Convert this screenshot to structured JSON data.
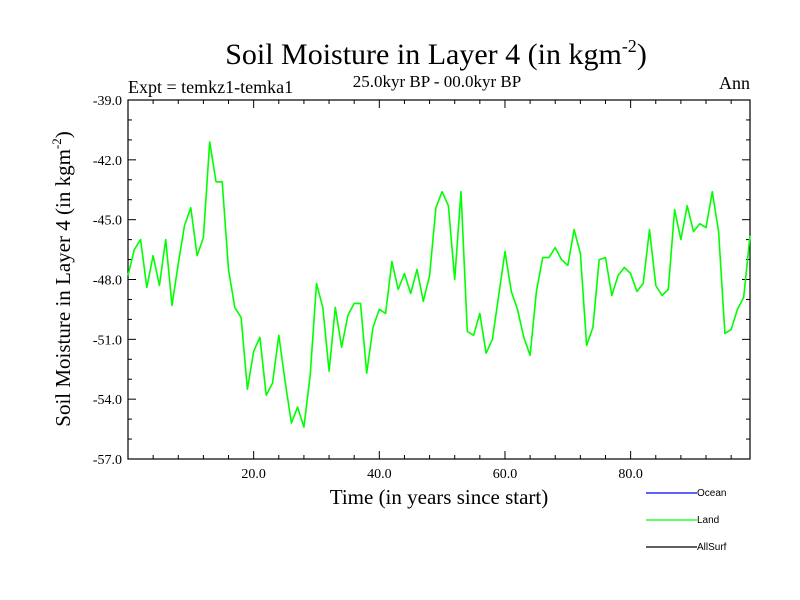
{
  "chart_data": {
    "type": "line",
    "title": "Soil Moisture in Layer 4 (in kgm",
    "title_exponent": "-2",
    "title_close": ")",
    "subtitle_left": "Expt = temkz1-temka1",
    "subtitle_center": "25.0kyr BP - 00.0kyr BP",
    "subtitle_right": "Ann",
    "xlabel": "Time (in years since start)",
    "ylabel": "Soil Moisture in Layer 4 (in kgm",
    "ylabel_exponent": "-2",
    "ylabel_close": ")",
    "xlim": [
      0,
      99
    ],
    "ylim": [
      -57,
      -39
    ],
    "xticks": [
      20,
      40,
      60,
      80
    ],
    "xtick_labels": [
      "20.0",
      "40.0",
      "60.0",
      "80.0"
    ],
    "yticks": [
      -39,
      -42,
      -45,
      -48,
      -51,
      -54,
      -57
    ],
    "ytick_labels": [
      "-39.0",
      "-42.0",
      "-45.0",
      "-48.0",
      "-51.0",
      "-54.0",
      "-57.0"
    ],
    "legend": [
      {
        "name": "Ocean",
        "color": "#0000ff"
      },
      {
        "name": "Land",
        "color": "#00ff00"
      },
      {
        "name": "AllSurf",
        "color": "#000000"
      }
    ],
    "legend_position": "bottom-right",
    "series": [
      {
        "name": "Land",
        "color": "#00ff00",
        "x": [
          0,
          1,
          2,
          3,
          4,
          5,
          6,
          7,
          8,
          9,
          10,
          11,
          12,
          13,
          14,
          15,
          16,
          17,
          18,
          19,
          20,
          21,
          22,
          23,
          24,
          25,
          26,
          27,
          28,
          29,
          30,
          31,
          32,
          33,
          34,
          35,
          36,
          37,
          38,
          39,
          40,
          41,
          42,
          43,
          44,
          45,
          46,
          47,
          48,
          49,
          50,
          51,
          52,
          53,
          54,
          55,
          56,
          57,
          58,
          59,
          60,
          61,
          62,
          63,
          64,
          65,
          66,
          67,
          68,
          69,
          70,
          71,
          72,
          73,
          74,
          75,
          76,
          77,
          78,
          79,
          80,
          81,
          82,
          83,
          84,
          85,
          86,
          87,
          88,
          89,
          90,
          91,
          92,
          93,
          94,
          95,
          96,
          97,
          98,
          99
        ],
        "values": [
          -47.8,
          -46.5,
          -46.0,
          -48.4,
          -46.8,
          -48.3,
          -46.0,
          -49.3,
          -47.2,
          -45.3,
          -44.4,
          -46.8,
          -45.9,
          -41.1,
          -43.1,
          -43.1,
          -47.5,
          -49.4,
          -49.9,
          -53.5,
          -51.6,
          -50.9,
          -53.8,
          -53.2,
          -50.8,
          -53.1,
          -55.2,
          -54.4,
          -55.4,
          -52.8,
          -48.2,
          -49.4,
          -52.6,
          -49.4,
          -51.4,
          -49.8,
          -49.2,
          -49.2,
          -52.7,
          -50.4,
          -49.5,
          -49.7,
          -47.1,
          -48.5,
          -47.7,
          -48.7,
          -47.5,
          -49.1,
          -47.8,
          -44.4,
          -43.6,
          -44.3,
          -48.0,
          -43.6,
          -50.6,
          -50.8,
          -49.7,
          -51.7,
          -51.0,
          -48.8,
          -46.6,
          -48.6,
          -49.5,
          -50.9,
          -51.8,
          -48.6,
          -46.9,
          -46.9,
          -46.4,
          -47.0,
          -47.3,
          -45.5,
          -46.7,
          -51.3,
          -50.4,
          -47.0,
          -46.9,
          -48.8,
          -47.8,
          -47.4,
          -47.7,
          -48.6,
          -48.2,
          -45.5,
          -48.3,
          -48.8,
          -48.5,
          -44.5,
          -46.0,
          -44.3,
          -45.6,
          -45.2,
          -45.4,
          -43.6,
          -45.6,
          -50.7,
          -50.5,
          -49.5,
          -48.9,
          -45.8
        ]
      }
    ]
  }
}
